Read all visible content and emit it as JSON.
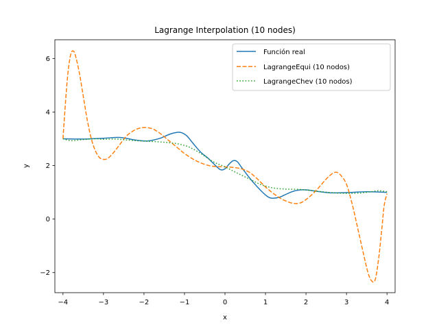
{
  "chart_data": {
    "type": "line",
    "title": "Lagrange Interpolation (10 nodes)",
    "xlabel": "x",
    "ylabel": "y",
    "xlim": [
      -4.2,
      4.2
    ],
    "ylim": [
      -2.75,
      6.7
    ],
    "xticks": [
      -4,
      -3,
      -2,
      -1,
      0,
      1,
      2,
      3,
      4
    ],
    "xtick_labels": [
      "−4",
      "−3",
      "−2",
      "−1",
      "0",
      "1",
      "2",
      "3",
      "4"
    ],
    "yticks": [
      -2,
      0,
      2,
      4,
      6
    ],
    "ytick_labels": [
      "−2",
      "0",
      "2",
      "4",
      "6"
    ],
    "grid": false,
    "legend_position": "top-right",
    "series": [
      {
        "name": "Función real",
        "color": "#1f77b4",
        "style": "solid",
        "x": [
          -4.0,
          -3.5,
          -3.0,
          -2.6,
          -2.2,
          -1.9,
          -1.6,
          -1.4,
          -1.25,
          -1.1,
          -0.95,
          -0.8,
          -0.6,
          -0.4,
          -0.2,
          -0.1,
          0.0,
          0.1,
          0.2,
          0.3,
          0.4,
          0.6,
          0.8,
          1.0,
          1.1,
          1.2,
          1.35,
          1.5,
          1.65,
          1.8,
          2.0,
          2.3,
          2.6,
          3.0,
          3.5,
          4.0
        ],
        "y": [
          3.0,
          2.99,
          3.02,
          3.05,
          2.95,
          2.92,
          3.02,
          3.15,
          3.22,
          3.24,
          3.12,
          2.85,
          2.5,
          2.25,
          1.95,
          1.84,
          1.88,
          2.05,
          2.18,
          2.15,
          1.95,
          1.55,
          1.2,
          0.9,
          0.8,
          0.78,
          0.82,
          0.92,
          1.02,
          1.08,
          1.09,
          1.03,
          0.98,
          0.99,
          1.02,
          1.0
        ]
      },
      {
        "name": "LagrangeEqui (10 nodos)",
        "color": "#ff7f0e",
        "style": "dashed",
        "x": [
          -4.0,
          -3.95,
          -3.9,
          -3.85,
          -3.8,
          -3.75,
          -3.7,
          -3.6,
          -3.5,
          -3.4,
          -3.3,
          -3.2,
          -3.1,
          -3.0,
          -2.9,
          -2.8,
          -2.7,
          -2.6,
          -2.5,
          -2.4,
          -2.2,
          -2.0,
          -1.8,
          -1.7,
          -1.6,
          -1.4,
          -1.2,
          -1.0,
          -0.8,
          -0.6,
          -0.4,
          -0.2,
          0.0,
          0.2,
          0.4,
          0.6,
          0.8,
          1.0,
          1.2,
          1.4,
          1.6,
          1.75,
          1.9,
          2.1,
          2.3,
          2.5,
          2.65,
          2.75,
          2.85,
          3.0,
          3.15,
          3.3,
          3.45,
          3.55,
          3.65,
          3.72,
          3.8,
          3.87,
          3.93,
          4.0
        ],
        "y": [
          3.0,
          4.1,
          5.1,
          5.8,
          6.2,
          6.28,
          6.15,
          5.5,
          4.6,
          3.7,
          3.0,
          2.55,
          2.3,
          2.23,
          2.26,
          2.4,
          2.58,
          2.78,
          2.98,
          3.15,
          3.35,
          3.42,
          3.38,
          3.3,
          3.2,
          2.95,
          2.7,
          2.45,
          2.25,
          2.1,
          2.0,
          1.96,
          1.95,
          1.93,
          1.88,
          1.75,
          1.5,
          1.2,
          0.95,
          0.75,
          0.62,
          0.58,
          0.63,
          0.85,
          1.15,
          1.5,
          1.7,
          1.75,
          1.65,
          1.3,
          0.5,
          -0.5,
          -1.5,
          -2.1,
          -2.35,
          -2.2,
          -1.4,
          -0.4,
          0.5,
          0.95
        ]
      },
      {
        "name": "LagrangeChev (10 nodos)",
        "color": "#2ca02c",
        "style": "dotted",
        "x": [
          -4.0,
          -3.8,
          -3.5,
          -3.2,
          -3.0,
          -2.7,
          -2.4,
          -2.1,
          -1.8,
          -1.5,
          -1.2,
          -0.9,
          -0.6,
          -0.3,
          0.0,
          0.3,
          0.6,
          0.9,
          1.2,
          1.5,
          1.8,
          2.1,
          2.4,
          2.7,
          3.0,
          3.3,
          3.6,
          3.8,
          4.0
        ],
        "y": [
          3.0,
          2.93,
          2.97,
          3.0,
          2.98,
          2.99,
          2.95,
          2.92,
          2.9,
          2.87,
          2.82,
          2.7,
          2.45,
          2.15,
          1.95,
          1.72,
          1.5,
          1.28,
          1.16,
          1.12,
          1.11,
          1.07,
          1.02,
          0.98,
          0.96,
          0.97,
          1.02,
          1.06,
          1.02
        ]
      }
    ]
  }
}
